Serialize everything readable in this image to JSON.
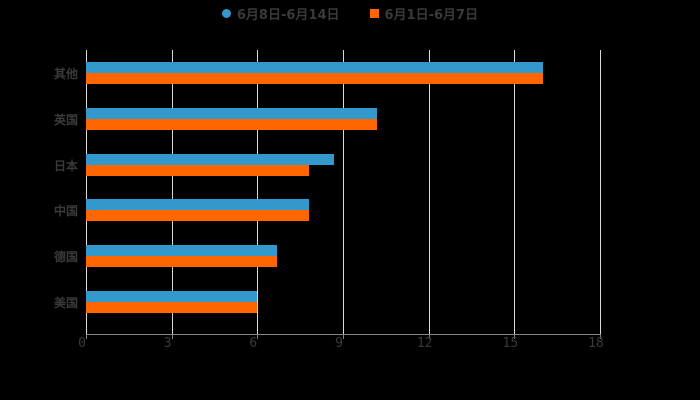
{
  "chart_data": {
    "type": "bar",
    "orientation": "horizontal",
    "title": "",
    "xlabel": "",
    "ylabel": "",
    "categories": [
      "其他",
      "英国",
      "日本",
      "中国",
      "德国",
      "美国"
    ],
    "series": [
      {
        "name": "6月8日-6月14日",
        "color": "#3399cc",
        "values": [
          16.0,
          10.2,
          8.7,
          7.8,
          6.7,
          6.0
        ]
      },
      {
        "name": "6月1日-6月7日",
        "color": "#ff6600",
        "values": [
          16.0,
          10.2,
          7.8,
          7.8,
          6.7,
          6.0
        ]
      }
    ],
    "xlim": [
      0,
      18
    ],
    "xticks": [
      0,
      3,
      6,
      9,
      12,
      15,
      18
    ],
    "grid": true,
    "legend_position": "top"
  },
  "legend": {
    "items": [
      {
        "label": "6月8日-6月14日",
        "color": "#3399cc",
        "marker": "circle"
      },
      {
        "label": "6月1日-6月7日",
        "color": "#ff6600",
        "marker": "square"
      }
    ]
  },
  "colors": {
    "background": "#000000",
    "text": "#3a3a3a",
    "grid": "#d9d9d9"
  }
}
